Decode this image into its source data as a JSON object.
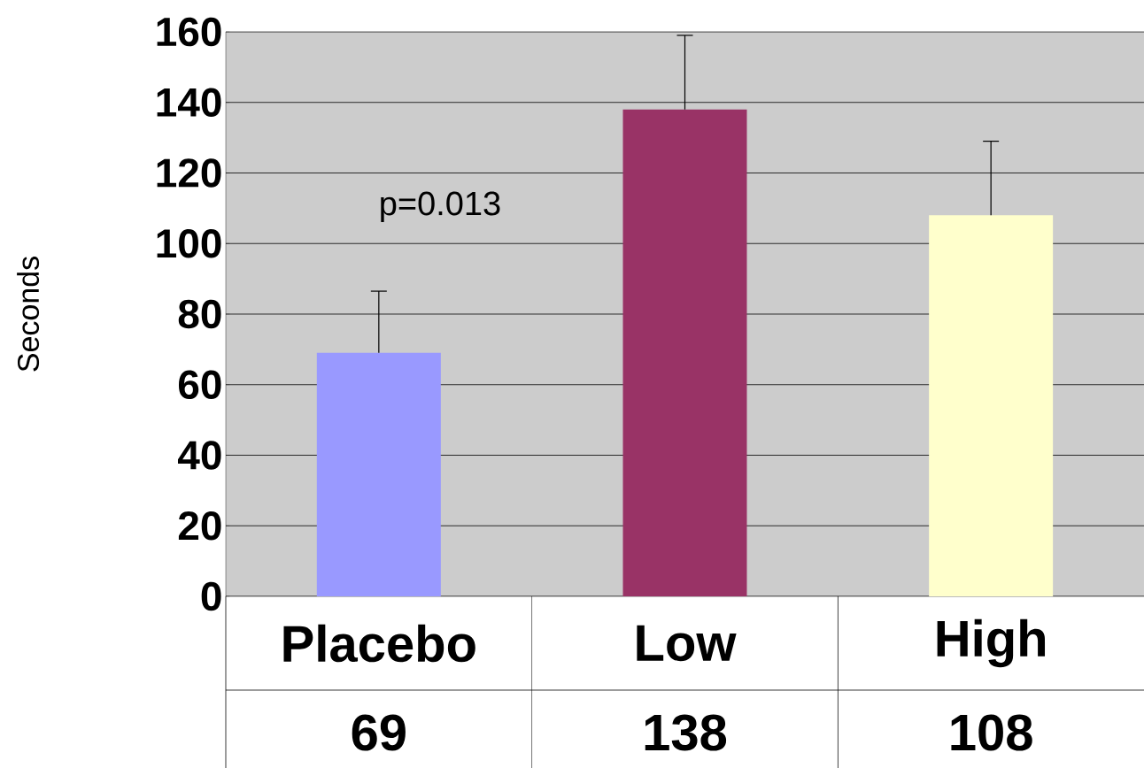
{
  "chart_data": {
    "type": "bar",
    "ylabel": "Seconds",
    "categories": [
      "Placebo",
      "Low",
      "High"
    ],
    "values": [
      69,
      138,
      108
    ],
    "colors": [
      "#9999ff",
      "#993366",
      "#ffffcc"
    ],
    "errors": [
      [
        69,
        86.5
      ],
      [
        138,
        159
      ],
      [
        108,
        129
      ]
    ],
    "ylim": [
      0,
      160
    ],
    "yticks": [
      0,
      20,
      40,
      60,
      80,
      100,
      120,
      140,
      160
    ],
    "grid": "y",
    "data_labels": true,
    "annotations": [
      "p=0.013"
    ]
  }
}
